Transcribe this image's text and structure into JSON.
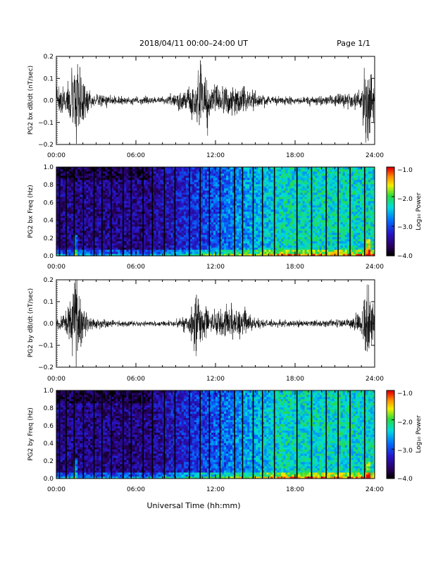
{
  "header": {
    "title": "2018/04/11   00:00–24:00 UT",
    "page": "Page 1/1"
  },
  "xlabel": "Universal Time (hh:mm)",
  "x_ticks": [
    "00:00",
    "06:00",
    "12:00",
    "18:00",
    "24:00"
  ],
  "colorbar": {
    "label": "Log₁₀ Power",
    "ticks": [
      "−1.0",
      "−2.0",
      "−3.0",
      "−4.0"
    ]
  },
  "chart_data": [
    {
      "type": "line",
      "ylabel": "PG2 bx dB/dt (nT/sec)",
      "xlim": [
        0,
        24
      ],
      "ylim": [
        -0.2,
        0.2
      ],
      "y_tick_values": [
        -0.2,
        -0.1,
        0.0,
        0.1,
        0.2
      ],
      "y_tick_labels": [
        "−0.2",
        "−0.1",
        "0.0",
        "0.1",
        "0.2"
      ],
      "x_tick_values": [
        0,
        6,
        12,
        18,
        24
      ],
      "envelope": {
        "x": [
          0,
          0.5,
          1.0,
          1.5,
          2.0,
          2.5,
          3.0,
          4.0,
          6.0,
          8.0,
          9.0,
          10.0,
          10.5,
          11.0,
          11.5,
          12.0,
          13.0,
          14.0,
          14.5,
          15.0,
          16.0,
          18.0,
          20.0,
          22.0,
          23.0,
          23.5,
          24.0
        ],
        "amp": [
          0.07,
          0.08,
          0.12,
          0.3,
          0.12,
          0.05,
          0.04,
          0.03,
          0.02,
          0.02,
          0.04,
          0.08,
          0.11,
          0.3,
          0.14,
          0.09,
          0.1,
          0.09,
          0.08,
          0.05,
          0.03,
          0.02,
          0.03,
          0.04,
          0.08,
          0.3,
          0.08
        ]
      }
    },
    {
      "type": "heatmap",
      "ylabel": "PG2 bx Freq (Hz)",
      "xlim": [
        0,
        24
      ],
      "ylim": [
        0,
        1.0
      ],
      "y_tick_labels": [
        "0.0",
        "0.2",
        "0.4",
        "0.6",
        "0.8",
        "1.0"
      ],
      "colorbar_range": [
        -4.0,
        -1.0
      ],
      "data_gaps_ut": [
        0.2,
        0.7,
        1.3,
        2.0,
        2.8,
        3.4,
        4.1,
        5.0,
        5.6,
        6.5,
        7.2,
        8.1,
        8.9,
        10.0,
        10.8,
        11.5,
        12.3,
        13.4,
        14.0,
        14.8,
        15.5,
        16.4,
        18.1,
        19.2,
        20.3,
        21.2,
        22.1,
        23.2
      ]
    },
    {
      "type": "line",
      "ylabel": "PG2 by dB/dt (nT/sec)",
      "xlim": [
        0,
        24
      ],
      "ylim": [
        -0.2,
        0.2
      ],
      "y_tick_values": [
        -0.2,
        -0.1,
        0.0,
        0.1,
        0.2
      ],
      "y_tick_labels": [
        "−0.2",
        "−0.1",
        "0.0",
        "0.1",
        "0.2"
      ],
      "x_tick_values": [
        0,
        6,
        12,
        18,
        24
      ],
      "envelope": {
        "x": [
          0,
          0.5,
          1.0,
          1.5,
          2.0,
          2.5,
          3.0,
          4.0,
          6.0,
          8.0,
          9.0,
          10.0,
          10.5,
          11.0,
          11.5,
          12.0,
          13.0,
          14.0,
          14.5,
          15.0,
          16.0,
          18.0,
          20.0,
          22.0,
          23.0,
          23.5,
          24.0
        ],
        "amp": [
          0.03,
          0.05,
          0.12,
          0.3,
          0.1,
          0.04,
          0.03,
          0.02,
          0.015,
          0.015,
          0.02,
          0.06,
          0.2,
          0.12,
          0.08,
          0.07,
          0.1,
          0.09,
          0.07,
          0.03,
          0.02,
          0.02,
          0.02,
          0.03,
          0.06,
          0.3,
          0.06
        ]
      }
    },
    {
      "type": "heatmap",
      "ylabel": "PG2 by Freq (Hz)",
      "xlim": [
        0,
        24
      ],
      "ylim": [
        0,
        1.0
      ],
      "y_tick_labels": [
        "0.0",
        "0.2",
        "0.4",
        "0.6",
        "0.8",
        "1.0"
      ],
      "colorbar_range": [
        -4.0,
        -1.0
      ],
      "data_gaps_ut": [
        0.2,
        0.7,
        1.3,
        2.0,
        2.8,
        3.4,
        4.1,
        5.0,
        5.6,
        6.5,
        7.2,
        8.1,
        8.9,
        10.0,
        10.8,
        11.5,
        12.3,
        13.4,
        14.0,
        14.8,
        15.5,
        16.4,
        18.1,
        19.2,
        20.3,
        21.2,
        22.1,
        23.2
      ]
    }
  ]
}
